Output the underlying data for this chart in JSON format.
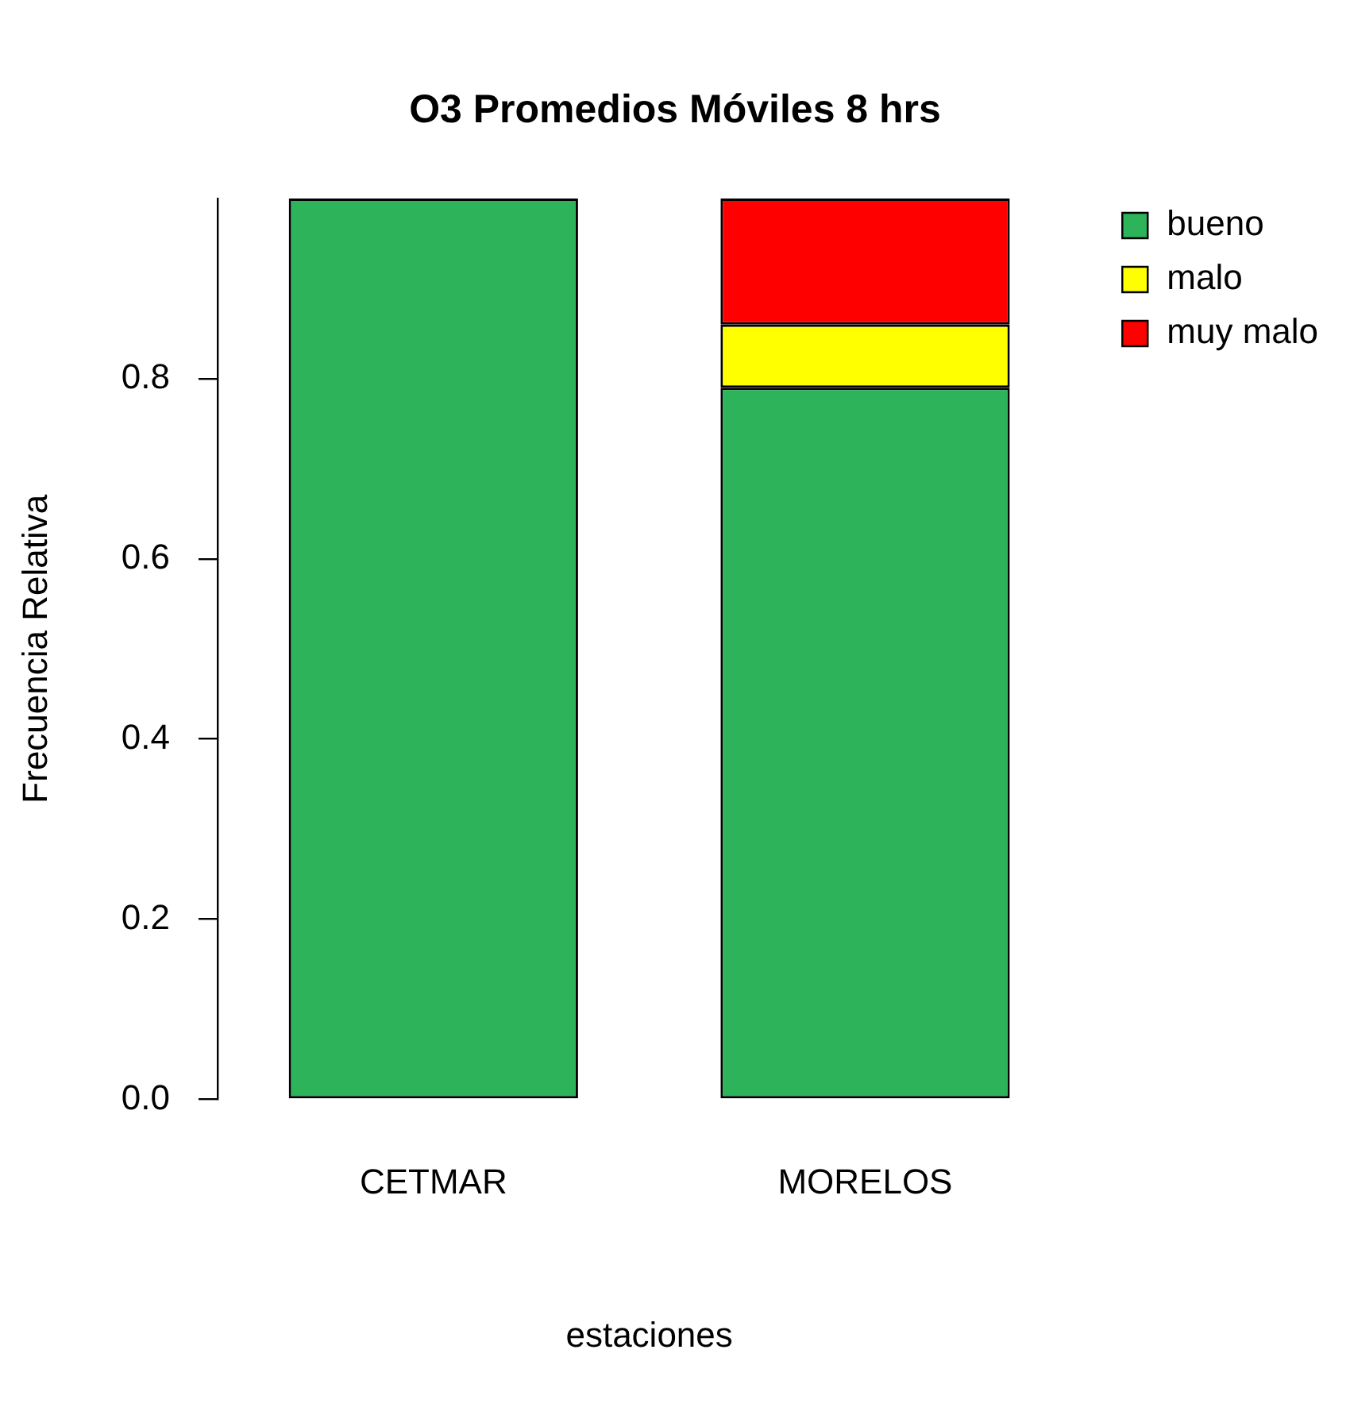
{
  "chart_data": {
    "type": "bar",
    "title": "O3 Promedios Móviles 8 hrs",
    "xlabel": "estaciones",
    "ylabel": "Frecuencia Relativa",
    "categories": [
      "CETMAR",
      "MORELOS"
    ],
    "stacked": true,
    "series": [
      {
        "name": "bueno",
        "color": "#2db35a",
        "values": [
          1.0,
          0.79
        ]
      },
      {
        "name": "malo",
        "color": "#ffff00",
        "values": [
          0,
          0.07
        ]
      },
      {
        "name": "muy malo",
        "color": "#ff0000",
        "values": [
          0,
          0.14
        ]
      }
    ],
    "ylim": [
      0,
      1
    ],
    "yticks": [
      {
        "value": 0,
        "label": "0.0"
      },
      0.2,
      0.4,
      0.6,
      0.8
    ],
    "legend": "top right"
  }
}
